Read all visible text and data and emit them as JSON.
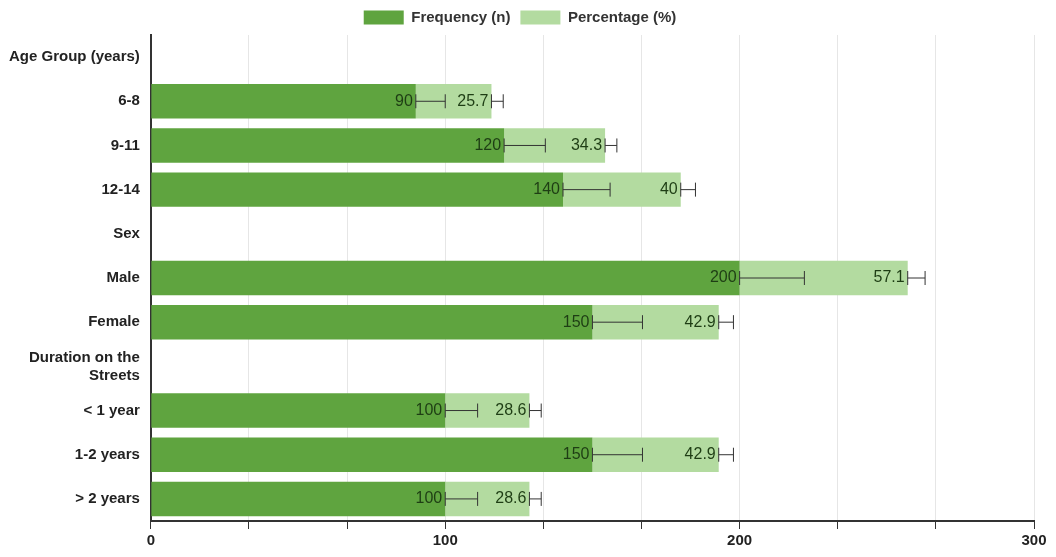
{
  "chart_data": {
    "type": "bar",
    "orientation": "horizontal",
    "stacked": true,
    "categories": [
      "Age Group (years)",
      "6-8",
      "9-11",
      "12-14",
      "Sex",
      "Male",
      "Female",
      "Duration on the Streets",
      "< 1 year",
      "1-2 years",
      "> 2 years"
    ],
    "series": [
      {
        "name": "Frequency (n)",
        "color": "#5fa43f",
        "values": [
          0,
          90,
          120,
          140,
          0,
          200,
          150,
          0,
          100,
          150,
          100
        ],
        "value_labels": [
          null,
          "90",
          "120",
          "140",
          null,
          "200",
          "150",
          null,
          "100",
          "150",
          "100"
        ],
        "errors": [
          null,
          [
            90,
            100
          ],
          [
            120,
            134
          ],
          [
            140,
            156
          ],
          null,
          [
            200,
            222
          ],
          [
            150,
            167
          ],
          null,
          [
            100,
            111
          ],
          [
            150,
            167
          ],
          [
            100,
            111
          ]
        ]
      },
      {
        "name": "Percentage (%)",
        "color": "#b3dba0",
        "values": [
          0,
          25.7,
          34.3,
          40,
          0,
          57.1,
          42.9,
          0,
          28.6,
          42.9,
          28.6
        ],
        "value_labels": [
          null,
          "25.7",
          "34.3",
          "40",
          null,
          "57.1",
          "42.9",
          null,
          "28.6",
          "42.9",
          "28.6"
        ],
        "errors": [
          null,
          [
            115.7,
            119.7
          ],
          [
            154.3,
            158.3
          ],
          [
            180,
            185
          ],
          null,
          [
            257.1,
            263
          ],
          [
            192.9,
            197.9
          ],
          null,
          [
            128.6,
            132.6
          ],
          [
            192.9,
            197.9
          ],
          [
            128.6,
            132.6
          ]
        ]
      }
    ],
    "xlim": [
      0,
      300
    ],
    "xticks": [
      0,
      {
        "value": 33.33,
        "label": null
      },
      {
        "value": 66.67,
        "label": null
      },
      100,
      {
        "value": 133.33,
        "label": null
      },
      {
        "value": 166.67,
        "label": null
      },
      200,
      {
        "value": 233.33,
        "label": null
      },
      {
        "value": 266.67,
        "label": null
      },
      300
    ],
    "grid": "x",
    "legend": "top"
  }
}
